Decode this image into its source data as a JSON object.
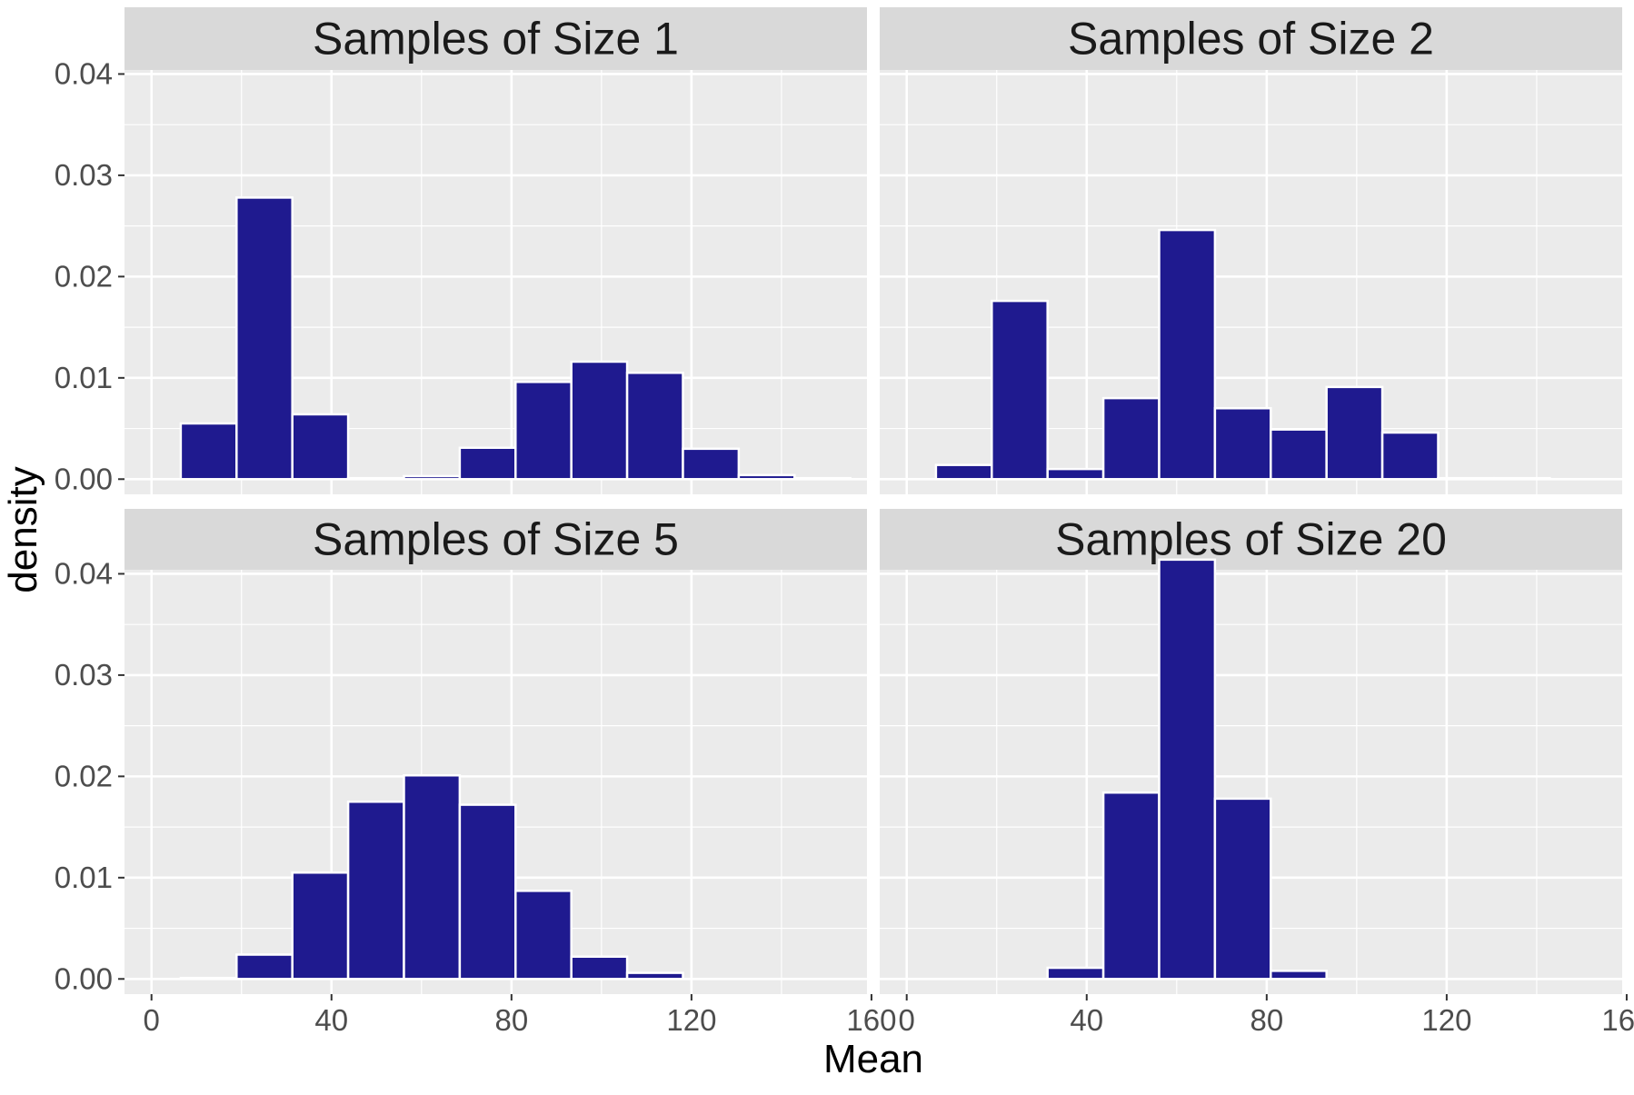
{
  "chart_data": {
    "type": "bar",
    "layout": "facet-grid 2x2",
    "xlabel": "Mean",
    "ylabel": "density",
    "xlim": [
      -6,
      159
    ],
    "ylim": [
      -0.0015,
      0.0404
    ],
    "x_ticks": [
      0,
      40,
      80,
      120,
      160
    ],
    "x_tick_labels": [
      "0",
      "40",
      "80",
      "120",
      "160"
    ],
    "y_ticks": [
      0.0,
      0.01,
      0.02,
      0.03,
      0.04
    ],
    "y_tick_labels": [
      "0.00",
      "0.01",
      "0.02",
      "0.03",
      "0.04"
    ],
    "grid": true,
    "bar_color": "#1f1a8f",
    "bar_outline": "#ffffff",
    "panel_background": "#ebebeb",
    "strip_background": "#d9d9d9",
    "bin_width": 12.4,
    "panels": [
      {
        "title": "Samples of Size 1",
        "bars": [
          {
            "x": 12.7,
            "density": 0.0055
          },
          {
            "x": 25.1,
            "density": 0.0278
          },
          {
            "x": 37.5,
            "density": 0.0064
          },
          {
            "x": 49.9,
            "density": 0.0001
          },
          {
            "x": 62.3,
            "density": 0.0003
          },
          {
            "x": 74.7,
            "density": 0.0031
          },
          {
            "x": 87.1,
            "density": 0.0096
          },
          {
            "x": 99.5,
            "density": 0.0116
          },
          {
            "x": 111.9,
            "density": 0.0105
          },
          {
            "x": 124.3,
            "density": 0.003
          },
          {
            "x": 136.7,
            "density": 0.0004
          },
          {
            "x": 149.1,
            "density": 0.0001
          }
        ]
      },
      {
        "title": "Samples of Size 2",
        "bars": [
          {
            "x": 12.7,
            "density": 0.0014
          },
          {
            "x": 25.1,
            "density": 0.0176
          },
          {
            "x": 37.5,
            "density": 0.001
          },
          {
            "x": 49.9,
            "density": 0.008
          },
          {
            "x": 62.3,
            "density": 0.0246
          },
          {
            "x": 74.7,
            "density": 0.007
          },
          {
            "x": 87.1,
            "density": 0.0049
          },
          {
            "x": 99.5,
            "density": 0.0091
          },
          {
            "x": 111.9,
            "density": 0.0046
          },
          {
            "x": 124.3,
            "density": 0.0001
          },
          {
            "x": 136.7,
            "density": 0.0001
          }
        ]
      },
      {
        "title": "Samples of Size 5",
        "bars": [
          {
            "x": 12.7,
            "density": 0.0001
          },
          {
            "x": 25.1,
            "density": 0.0024
          },
          {
            "x": 37.5,
            "density": 0.0105
          },
          {
            "x": 49.9,
            "density": 0.0175
          },
          {
            "x": 62.3,
            "density": 0.0201
          },
          {
            "x": 74.7,
            "density": 0.0172
          },
          {
            "x": 87.1,
            "density": 0.0087
          },
          {
            "x": 99.5,
            "density": 0.0022
          },
          {
            "x": 111.9,
            "density": 0.0006
          }
        ]
      },
      {
        "title": "Samples of Size 20",
        "bars": [
          {
            "x": 37.5,
            "density": 0.0011
          },
          {
            "x": 49.9,
            "density": 0.0184
          },
          {
            "x": 62.3,
            "density": 0.0414
          },
          {
            "x": 74.7,
            "density": 0.0178
          },
          {
            "x": 87.1,
            "density": 0.0008
          }
        ]
      }
    ]
  }
}
